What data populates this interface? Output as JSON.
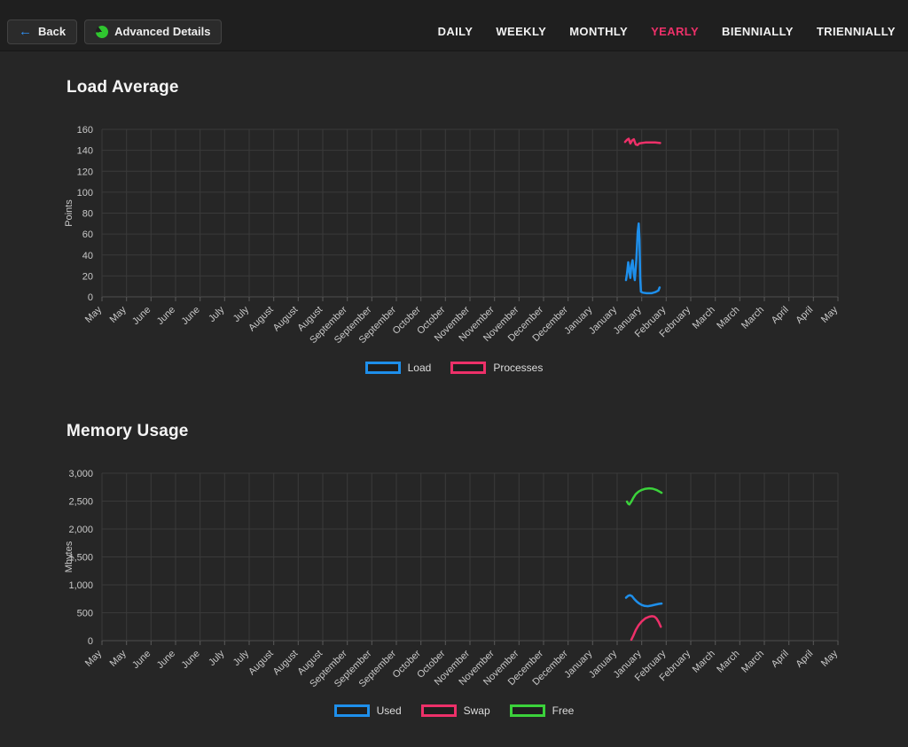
{
  "header": {
    "back_label": "Back",
    "back_icon": "left-arrow-icon",
    "back_icon_glyph": "←",
    "back_icon_color": "#2f8ff2",
    "advanced_label": "Advanced Details",
    "advanced_icon": "pie-chart-icon",
    "advanced_icon_color": "#2fc62f",
    "active_tab_color": "#ed3069",
    "tabs": [
      {
        "label": "DAILY",
        "active": false
      },
      {
        "label": "WEEKLY",
        "active": false
      },
      {
        "label": "MONTHLY",
        "active": false
      },
      {
        "label": "YEARLY",
        "active": true
      },
      {
        "label": "BIENNIALLY",
        "active": false
      },
      {
        "label": "TRIENNIALLY",
        "active": false
      }
    ]
  },
  "chart_data": [
    {
      "type": "line",
      "title": "Load Average",
      "xlabel": "",
      "ylabel": "Points",
      "y_min": 0,
      "y_max": 160,
      "y_step": 20,
      "grid": true,
      "legend_position": "bottom",
      "categories": [
        "May",
        "May",
        "June",
        "June",
        "June",
        "July",
        "July",
        "August",
        "August",
        "August",
        "September",
        "September",
        "September",
        "October",
        "October",
        "November",
        "November",
        "November",
        "December",
        "December",
        "January",
        "January",
        "January",
        "February",
        "February",
        "March",
        "March",
        "March",
        "April",
        "April",
        "May"
      ],
      "series": [
        {
          "name": "Load",
          "color": "#1e8feb",
          "points": [
            [
              21.36,
              16
            ],
            [
              21.4,
              22
            ],
            [
              21.45,
              33
            ],
            [
              21.5,
              24
            ],
            [
              21.54,
              18
            ],
            [
              21.58,
              30
            ],
            [
              21.63,
              35
            ],
            [
              21.68,
              22
            ],
            [
              21.72,
              16
            ],
            [
              21.78,
              35
            ],
            [
              21.84,
              62
            ],
            [
              21.88,
              70
            ],
            [
              21.91,
              55
            ],
            [
              21.94,
              18
            ],
            [
              21.97,
              5
            ],
            [
              22.05,
              4
            ],
            [
              22.2,
              3.5
            ],
            [
              22.4,
              3.5
            ],
            [
              22.55,
              4.5
            ],
            [
              22.68,
              6
            ],
            [
              22.73,
              9
            ]
          ]
        },
        {
          "name": "Processes",
          "color": "#ed3069",
          "points": [
            [
              21.32,
              148
            ],
            [
              21.4,
              150
            ],
            [
              21.47,
              151
            ],
            [
              21.54,
              146.5
            ],
            [
              21.61,
              149.5
            ],
            [
              21.68,
              150.5
            ],
            [
              21.76,
              145.5
            ],
            [
              21.83,
              145
            ],
            [
              21.9,
              146.5
            ],
            [
              22.0,
              147
            ],
            [
              22.15,
              147.5
            ],
            [
              22.35,
              147.5
            ],
            [
              22.55,
              147.5
            ],
            [
              22.75,
              147
            ]
          ]
        }
      ]
    },
    {
      "type": "line",
      "title": "Memory Usage",
      "xlabel": "",
      "ylabel": "Mbytes",
      "y_min": 0,
      "y_max": 3000,
      "y_step": 500,
      "grid": true,
      "legend_position": "bottom",
      "categories": [
        "May",
        "May",
        "June",
        "June",
        "June",
        "July",
        "July",
        "August",
        "August",
        "August",
        "September",
        "September",
        "September",
        "October",
        "October",
        "November",
        "November",
        "November",
        "December",
        "December",
        "January",
        "January",
        "January",
        "February",
        "February",
        "March",
        "March",
        "March",
        "April",
        "April",
        "May"
      ],
      "series": [
        {
          "name": "Used",
          "color": "#1e8feb",
          "points": [
            [
              21.36,
              770
            ],
            [
              21.45,
              805
            ],
            [
              21.52,
              815
            ],
            [
              21.6,
              800
            ],
            [
              21.7,
              745
            ],
            [
              21.8,
              700
            ],
            [
              21.9,
              665
            ],
            [
              22.0,
              640
            ],
            [
              22.12,
              622
            ],
            [
              22.25,
              618
            ],
            [
              22.4,
              628
            ],
            [
              22.55,
              645
            ],
            [
              22.7,
              658
            ],
            [
              22.81,
              665
            ]
          ]
        },
        {
          "name": "Swap",
          "color": "#ed3069",
          "points": [
            [
              21.58,
              18
            ],
            [
              21.66,
              90
            ],
            [
              21.76,
              190
            ],
            [
              21.88,
              280
            ],
            [
              22.0,
              345
            ],
            [
              22.15,
              400
            ],
            [
              22.3,
              428
            ],
            [
              22.42,
              438
            ],
            [
              22.52,
              430
            ],
            [
              22.6,
              400
            ],
            [
              22.7,
              330
            ],
            [
              22.78,
              250
            ]
          ]
        },
        {
          "name": "Free",
          "color": "#3bd23b",
          "points": [
            [
              21.4,
              2490
            ],
            [
              21.46,
              2450
            ],
            [
              21.5,
              2440
            ],
            [
              21.58,
              2490
            ],
            [
              21.66,
              2560
            ],
            [
              21.76,
              2625
            ],
            [
              21.88,
              2672
            ],
            [
              22.0,
              2700
            ],
            [
              22.15,
              2720
            ],
            [
              22.3,
              2728
            ],
            [
              22.45,
              2722
            ],
            [
              22.6,
              2700
            ],
            [
              22.72,
              2672
            ],
            [
              22.81,
              2650
            ]
          ]
        }
      ]
    }
  ]
}
